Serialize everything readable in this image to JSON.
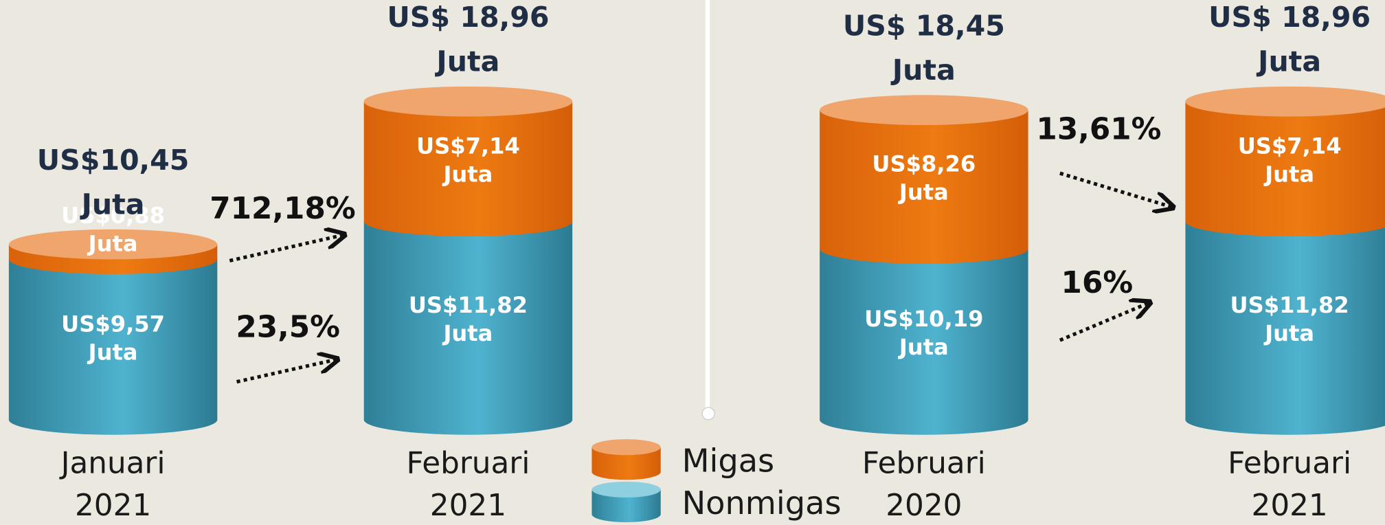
{
  "chart_data": [
    {
      "type": "bar",
      "categories": [
        "Januari 2021",
        "Februari 2021"
      ],
      "series": [
        {
          "name": "Nonmigas",
          "color": "#3a9ab5",
          "values": [
            9.57,
            11.82
          ],
          "value_labels": [
            "US$9,57 Juta",
            "US$11,82 Juta"
          ]
        },
        {
          "name": "Migas",
          "color": "#e46c0a",
          "values": [
            0.88,
            7.14
          ],
          "value_labels": [
            "US$0,88 Juta",
            "US$7,14 Juta"
          ]
        }
      ],
      "totals": [
        10.45,
        18.96
      ],
      "total_labels": [
        "US$10,45 Juta",
        "US$ 18,96 Juta"
      ],
      "growth": [
        {
          "value": 712.18,
          "label": "712,18%"
        },
        {
          "value": 23.5,
          "label": "23,5%"
        }
      ]
    },
    {
      "type": "bar",
      "categories": [
        "Februari 2020",
        "Februari 2021"
      ],
      "series": [
        {
          "name": "Nonmigas",
          "color": "#3a9ab5",
          "values": [
            10.19,
            11.82
          ],
          "value_labels": [
            "US$10,19 Juta",
            "US$11,82 Juta"
          ]
        },
        {
          "name": "Migas",
          "color": "#e46c0a",
          "values": [
            8.26,
            7.14
          ],
          "value_labels": [
            "US$8,26 Juta",
            "US$7,14 Juta"
          ]
        }
      ],
      "totals": [
        18.45,
        18.96
      ],
      "total_labels": [
        "US$ 18,45 Juta",
        "US$ 18,96 Juta"
      ],
      "growth": [
        {
          "value": 13.61,
          "label": "13,61%"
        },
        {
          "value": 16,
          "label": "16%"
        }
      ]
    }
  ]
}
